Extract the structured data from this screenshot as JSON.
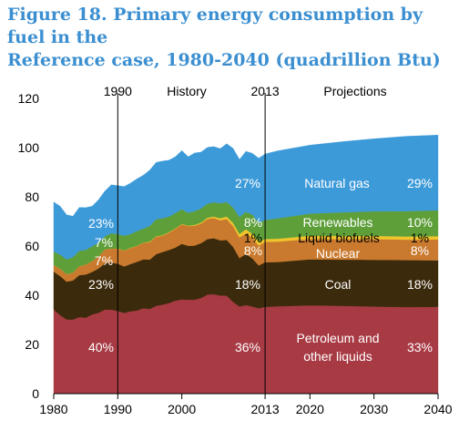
{
  "title_line1": "Figure 18. Primary energy consumption by fuel in the",
  "title_line2": "Reference case, 1980-2040 (quadrillion Btu)",
  "chart_data": {
    "type": "area",
    "stacked": true,
    "title": "Figure 18. Primary energy consumption by fuel in the Reference case, 1980-2040 (quadrillion Btu)",
    "xlabel": "",
    "ylabel": "",
    "xlim": [
      1980,
      2040
    ],
    "ylim": [
      0,
      120
    ],
    "x_ticks": [
      1980,
      1990,
      2000,
      2013,
      2020,
      2030,
      2040
    ],
    "y_ticks": [
      0,
      20,
      40,
      60,
      80,
      100,
      120
    ],
    "grid": false,
    "legend": "none",
    "x": [
      1980,
      1981,
      1982,
      1983,
      1984,
      1985,
      1986,
      1987,
      1988,
      1989,
      1990,
      1991,
      1992,
      1993,
      1994,
      1995,
      1996,
      1997,
      1998,
      1999,
      2000,
      2001,
      2002,
      2003,
      2004,
      2005,
      2006,
      2007,
      2008,
      2009,
      2010,
      2011,
      2012,
      2013,
      2015,
      2020,
      2025,
      2030,
      2035,
      2040
    ],
    "series": [
      {
        "name": "Petroleum and other liquids",
        "color": "#a83a44",
        "values": [
          34.2,
          31.9,
          30.2,
          30.1,
          31.1,
          30.9,
          32.2,
          32.9,
          34.2,
          34.2,
          33.6,
          32.8,
          33.5,
          33.8,
          34.7,
          34.4,
          35.7,
          36.2,
          36.8,
          37.8,
          38.3,
          38.2,
          38.2,
          38.9,
          40.3,
          40.4,
          39.9,
          39.8,
          37.3,
          35.4,
          36.0,
          35.4,
          34.7,
          35.3,
          35.5,
          35.9,
          35.7,
          35.4,
          35.2,
          35.3
        ]
      },
      {
        "name": "Coal",
        "color": "#3b2a0b",
        "values": [
          15.4,
          15.9,
          15.3,
          15.9,
          17.1,
          17.5,
          17.3,
          18.0,
          18.8,
          19.1,
          19.2,
          18.9,
          19.2,
          19.8,
          19.9,
          20.1,
          21.0,
          21.4,
          21.6,
          21.6,
          22.6,
          21.9,
          22.0,
          22.3,
          22.5,
          22.8,
          22.4,
          22.7,
          22.4,
          19.7,
          20.8,
          19.6,
          17.4,
          18.1,
          18.0,
          18.7,
          18.8,
          19.0,
          19.1,
          18.9
        ]
      },
      {
        "name": "Nuclear",
        "color": "#c97a2e",
        "values": [
          2.7,
          3.0,
          3.1,
          3.2,
          3.6,
          4.1,
          4.4,
          4.9,
          5.7,
          5.7,
          6.1,
          6.4,
          6.5,
          6.4,
          6.7,
          7.1,
          7.1,
          6.6,
          7.1,
          7.6,
          7.9,
          8.0,
          8.1,
          7.9,
          8.2,
          8.2,
          8.2,
          8.5,
          8.4,
          8.4,
          8.4,
          8.3,
          8.1,
          8.3,
          8.3,
          8.3,
          8.3,
          8.4,
          8.3,
          8.5
        ]
      },
      {
        "name": "Liquid biofuels",
        "color": "#f0c52c",
        "values": [
          0,
          0,
          0,
          0,
          0,
          0,
          0,
          0,
          0,
          0,
          0.1,
          0.1,
          0.1,
          0.1,
          0.1,
          0.2,
          0.2,
          0.2,
          0.2,
          0.2,
          0.2,
          0.2,
          0.3,
          0.4,
          0.5,
          0.6,
          0.8,
          1.0,
          1.3,
          1.4,
          1.6,
          1.7,
          1.6,
          1.2,
          1.2,
          1.3,
          1.3,
          1.3,
          1.3,
          1.3
        ]
      },
      {
        "name": "Renewables",
        "color": "#5e9f3a",
        "values": [
          5.4,
          5.7,
          6.0,
          6.3,
          6.3,
          5.9,
          6.0,
          5.6,
          5.3,
          6.2,
          5.9,
          6.0,
          5.6,
          6.0,
          5.7,
          6.4,
          6.9,
          6.9,
          6.3,
          6.2,
          6.0,
          5.2,
          5.6,
          5.8,
          5.7,
          5.8,
          6.1,
          5.9,
          6.3,
          6.9,
          7.1,
          7.8,
          7.8,
          7.7,
          8.3,
          9.0,
          9.6,
          10.0,
          10.3,
          10.5
        ]
      },
      {
        "name": "Natural gas",
        "color": "#3d9ad9",
        "values": [
          20.2,
          19.7,
          18.1,
          16.6,
          17.6,
          17.2,
          16.3,
          17.4,
          18.4,
          19.7,
          19.6,
          20.0,
          20.7,
          21.2,
          21.7,
          22.7,
          23.1,
          23.2,
          22.9,
          22.9,
          23.8,
          22.8,
          23.6,
          22.9,
          22.9,
          22.6,
          22.2,
          23.7,
          24.0,
          23.4,
          24.6,
          24.9,
          26.1,
          26.8,
          27.4,
          27.8,
          28.7,
          29.5,
          30.4,
          30.6
        ]
      }
    ],
    "header_labels": {
      "history": "History",
      "projections": "Projections"
    },
    "annotations": {
      "y1990": {
        "natural_gas": "23%",
        "renewables": "7%",
        "nuclear": "7%",
        "coal": "23%",
        "petroleum": "40%"
      },
      "y2013": {
        "natural_gas": "27%",
        "renewables": "8%",
        "liquid_biofuels": "1%",
        "nuclear": "8%",
        "coal": "18%",
        "petroleum": "36%"
      },
      "y2040": {
        "natural_gas": "29%",
        "renewables": "10%",
        "liquid_biofuels": "1%",
        "nuclear": "8%",
        "coal": "18%",
        "petroleum": "33%"
      },
      "series_labels": {
        "natural_gas": "Natural gas",
        "renewables": "Renewables",
        "liquid_biofuels": "Liquid biofuels",
        "nuclear": "Nuclear",
        "coal": "Coal",
        "petroleum_line1": "Petroleum and",
        "petroleum_line2": "other liquids"
      }
    }
  }
}
